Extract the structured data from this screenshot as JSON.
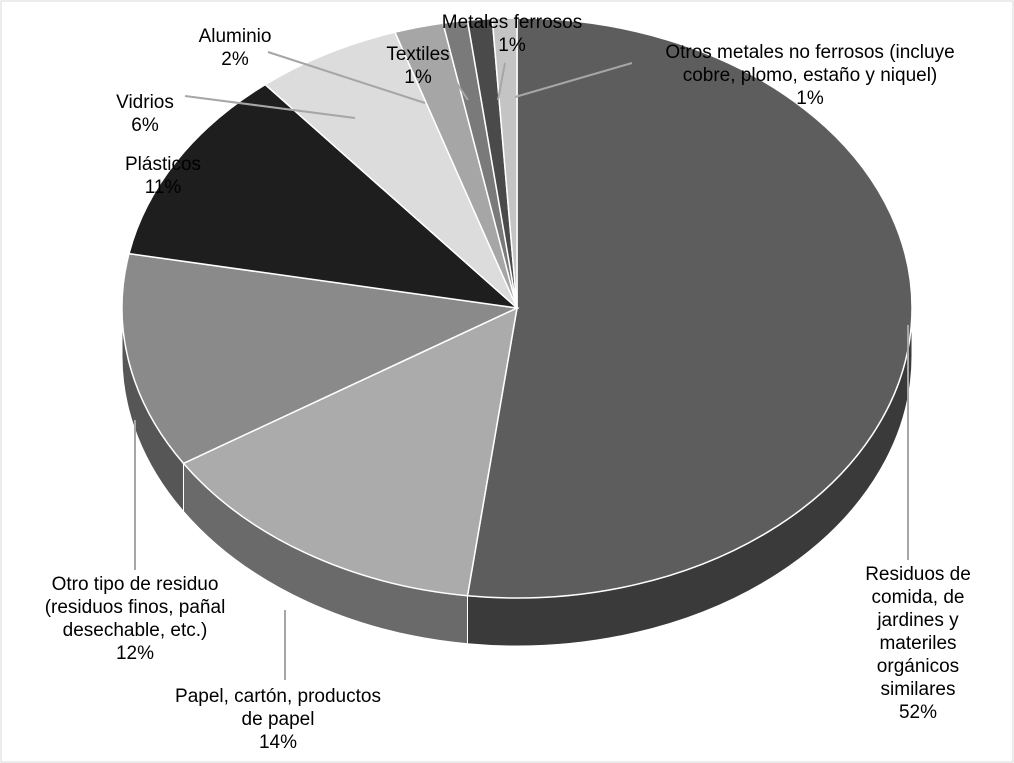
{
  "chart_data": {
    "type": "pie",
    "style": "3d",
    "slices": [
      {
        "label": [
          "Residuos de",
          "comida, de",
          "jardines y",
          "materiles",
          "orgánicos",
          "similares"
        ],
        "percent_text": "52%",
        "value": 52,
        "color": "#5d5d5d"
      },
      {
        "label": [
          "Papel, cartón, productos",
          "de papel"
        ],
        "percent_text": "14%",
        "value": 14,
        "color": "#ababab"
      },
      {
        "label": [
          "Otro tipo de residuo",
          "(residuos finos, pañal",
          "desechable, etc.)"
        ],
        "percent_text": "12%",
        "value": 12,
        "color": "#8a8a8a"
      },
      {
        "label": [
          "Plásticos"
        ],
        "percent_text": "11%",
        "value": 11,
        "color": "#1e1e1e"
      },
      {
        "label": [
          "Vidrios"
        ],
        "percent_text": "6%",
        "value": 6,
        "color": "#dcdcdc"
      },
      {
        "label": [
          "Aluminio"
        ],
        "percent_text": "2%",
        "value": 2,
        "color": "#a6a6a6"
      },
      {
        "label": [
          "Textiles"
        ],
        "percent_text": "1%",
        "value": 1,
        "color": "#7a7a7a"
      },
      {
        "label": [
          "Metales ferrosos"
        ],
        "percent_text": "1%",
        "value": 1,
        "color": "#4a4a4a"
      },
      {
        "label": [
          "Otros metales no ferrosos (incluye",
          "cobre, plomo, estaño y niquel)"
        ],
        "percent_text": "1%",
        "value": 1,
        "color": "#c4c4c4"
      }
    ]
  }
}
